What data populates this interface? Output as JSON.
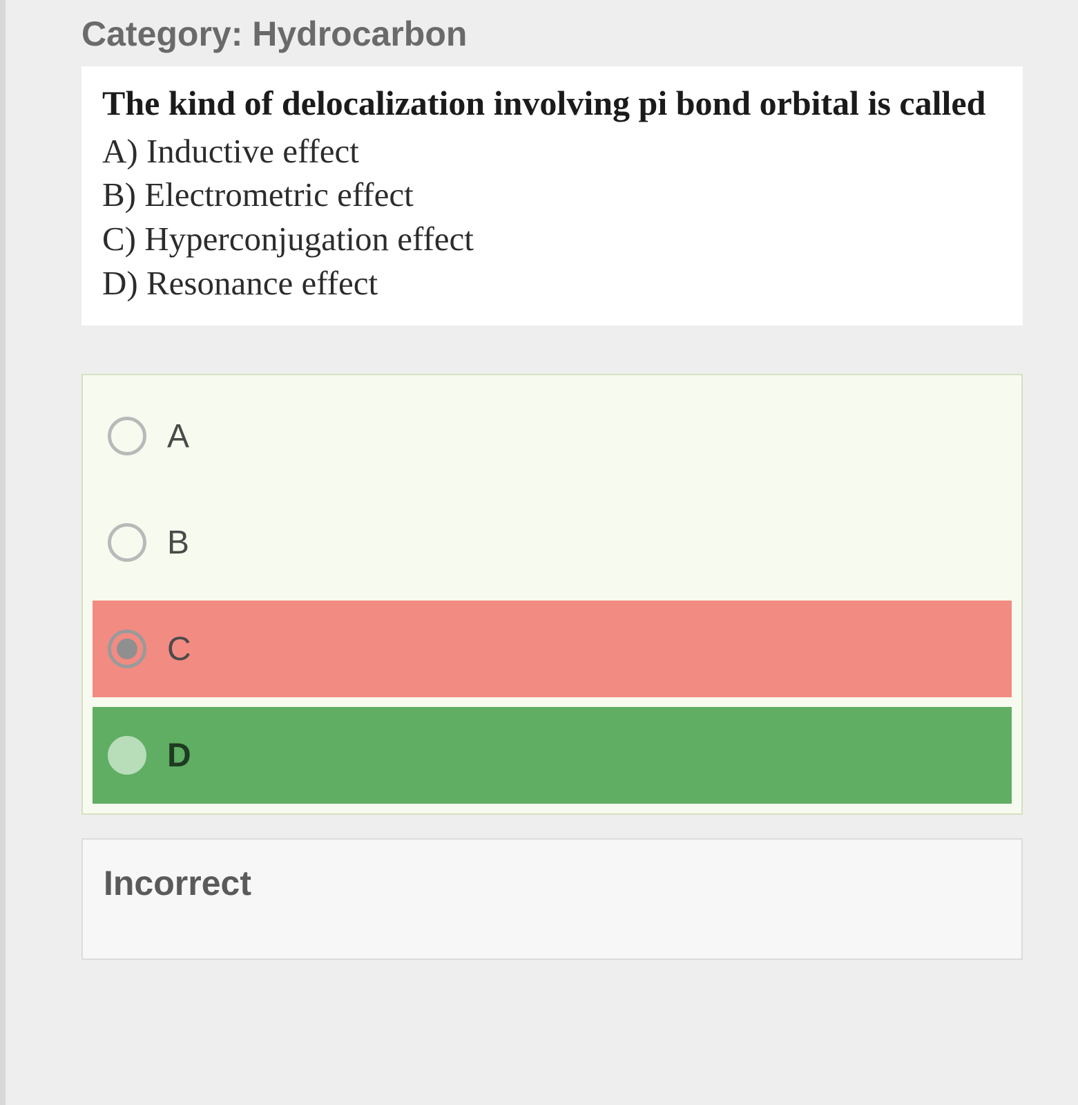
{
  "category_label": "Category: Hydrocarbon",
  "question": {
    "stem": "The kind of delocalization involving pi bond orbital is called",
    "options": [
      "A) Inductive effect",
      "B) Electrometric effect",
      "C) Hyperconjugation effect",
      "D) Resonance effect"
    ]
  },
  "answers": [
    {
      "label": "A",
      "state": "plain",
      "selected": false
    },
    {
      "label": "B",
      "state": "plain",
      "selected": false
    },
    {
      "label": "C",
      "state": "incorrect",
      "selected": true
    },
    {
      "label": "D",
      "state": "correct",
      "selected": false
    }
  ],
  "feedback": "Incorrect",
  "colors": {
    "page_bg": "#eeeeee",
    "card_bg": "#ffffff",
    "answers_bg": "#f7fbef",
    "answers_border": "#d6e0c0",
    "incorrect_bg": "#f28b82",
    "correct_bg": "#5fae63",
    "feedback_bg": "#f7f7f7",
    "feedback_border": "#dcdcdc",
    "text_primary": "#1b1b1b",
    "text_secondary": "#6a6a6a"
  },
  "fonts": {
    "heading_size_pt": 38,
    "question_size_pt": 38,
    "option_size_pt": 37,
    "answer_label_size_pt": 36,
    "family_serif": "Times New Roman",
    "family_sans": "Arial"
  }
}
